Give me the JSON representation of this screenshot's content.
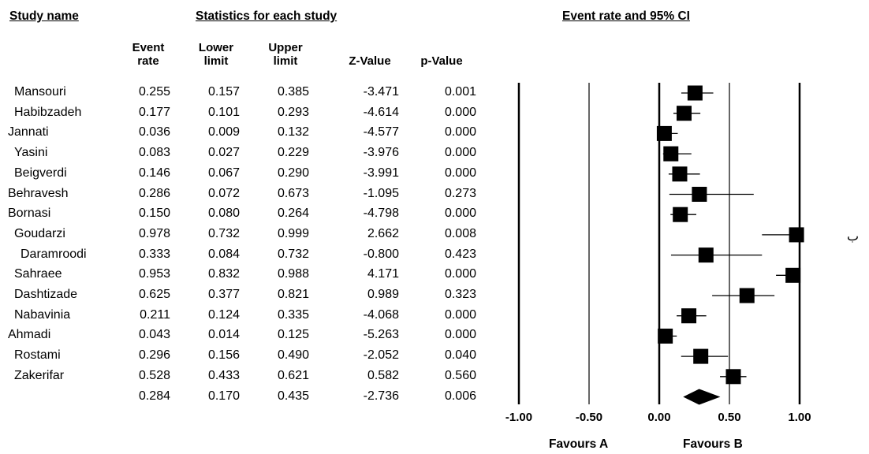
{
  "headers": {
    "study_name": "Study name",
    "statistics": "Statistics for each study",
    "plot": "Event rate and 95% CI"
  },
  "columns": [
    {
      "line1": "Event",
      "line2": "rate"
    },
    {
      "line1": "Lower",
      "line2": "limit"
    },
    {
      "line1": "Upper",
      "line2": "limit"
    },
    {
      "line1": "",
      "line2": "Z-Value"
    },
    {
      "line1": "",
      "line2": "p-Value"
    }
  ],
  "favours": {
    "left": "Favours A",
    "right": "Favours B"
  },
  "stray_char": "ب",
  "chart_data": {
    "type": "forest",
    "xlim": [
      -1.0,
      1.0
    ],
    "xticks": [
      "-1.00",
      "-0.50",
      "0.00",
      "0.50",
      "1.00"
    ],
    "studies": [
      {
        "name": "Mansouri",
        "event_rate": "0.255",
        "lower": "0.157",
        "upper": "0.385",
        "z": "-3.471",
        "p": "0.001"
      },
      {
        "name": "Habibzadeh",
        "event_rate": "0.177",
        "lower": "0.101",
        "upper": "0.293",
        "z": "-4.614",
        "p": "0.000"
      },
      {
        "name": "Jannati",
        "event_rate": "0.036",
        "lower": "0.009",
        "upper": "0.132",
        "z": "-4.577",
        "p": "0.000"
      },
      {
        "name": "Yasini",
        "event_rate": "0.083",
        "lower": "0.027",
        "upper": "0.229",
        "z": "-3.976",
        "p": "0.000"
      },
      {
        "name": "Beigverdi",
        "event_rate": "0.146",
        "lower": "0.067",
        "upper": "0.290",
        "z": "-3.991",
        "p": "0.000"
      },
      {
        "name": "Behravesh",
        "event_rate": "0.286",
        "lower": "0.072",
        "upper": "0.673",
        "z": "-1.095",
        "p": "0.273"
      },
      {
        "name": "Bornasi",
        "event_rate": "0.150",
        "lower": "0.080",
        "upper": "0.264",
        "z": "-4.798",
        "p": "0.000"
      },
      {
        "name": "Goudarzi",
        "event_rate": "0.978",
        "lower": "0.732",
        "upper": "0.999",
        "z": "2.662",
        "p": "0.008"
      },
      {
        "name": "Daramroodi",
        "event_rate": "0.333",
        "lower": "0.084",
        "upper": "0.732",
        "z": "-0.800",
        "p": "0.423"
      },
      {
        "name": "Sahraee",
        "event_rate": "0.953",
        "lower": "0.832",
        "upper": "0.988",
        "z": "4.171",
        "p": "0.000"
      },
      {
        "name": "Dashtizade",
        "event_rate": "0.625",
        "lower": "0.377",
        "upper": "0.821",
        "z": "0.989",
        "p": "0.323"
      },
      {
        "name": "Nabavinia",
        "event_rate": "0.211",
        "lower": "0.124",
        "upper": "0.335",
        "z": "-4.068",
        "p": "0.000"
      },
      {
        "name": "Ahmadi",
        "event_rate": "0.043",
        "lower": "0.014",
        "upper": "0.125",
        "z": "-5.263",
        "p": "0.000"
      },
      {
        "name": "Rostami",
        "event_rate": "0.296",
        "lower": "0.156",
        "upper": "0.490",
        "z": "-2.052",
        "p": "0.040"
      },
      {
        "name": "Zakerifar",
        "event_rate": "0.528",
        "lower": "0.433",
        "upper": "0.621",
        "z": "0.582",
        "p": "0.560"
      }
    ],
    "pooled": {
      "name": "",
      "event_rate": "0.284",
      "lower": "0.170",
      "upper": "0.435",
      "z": "-2.736",
      "p": "0.006"
    }
  }
}
